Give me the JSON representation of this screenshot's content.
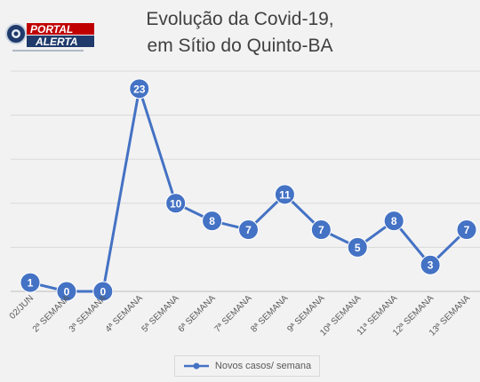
{
  "logo": {
    "text_top": "PORTAL",
    "text_bottom": "ALERTA"
  },
  "chart_data": {
    "type": "line",
    "title_lines": [
      "Evolução da Covid-19,",
      "em Sítio do Quinto-BA"
    ],
    "categories": [
      "02/JUN",
      "2ª SEMANA",
      "3ª SEMANA",
      "4ª SEMANA",
      "5ª SEMANA",
      "6ª SEMANA",
      "7ª SEMANA",
      "8ª SEMANA",
      "9ª SEMANA",
      "10ª SEMANA",
      "11ª SEMANA",
      "12ª SEMANA",
      "13ª SEMANA"
    ],
    "series": [
      {
        "name": "Novos casos/ semana",
        "values": [
          1,
          0,
          0,
          23,
          10,
          8,
          7,
          11,
          7,
          5,
          8,
          3,
          7
        ],
        "color": "#4472c4"
      }
    ],
    "ylim": [
      0,
      25
    ],
    "grid": true,
    "legend": "bottom"
  }
}
